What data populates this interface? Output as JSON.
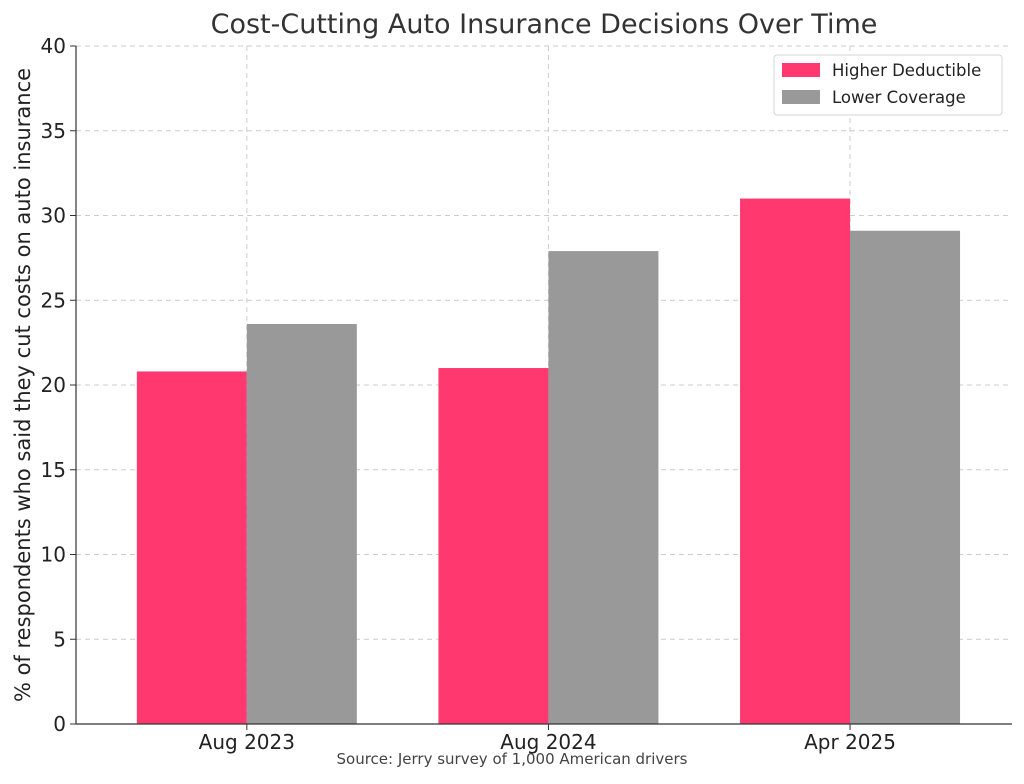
{
  "chart_data": {
    "type": "bar",
    "title": "Cost-Cutting Auto Insurance Decisions Over Time",
    "ylabel": "% of respondents who said they cut costs on auto insurance",
    "xlabel": "",
    "caption": "Source: Jerry survey of 1,000 American drivers",
    "categories": [
      "Aug 2023",
      "Aug 2024",
      "Apr 2025"
    ],
    "series": [
      {
        "name": "Higher Deductible",
        "color": "#ff3970",
        "values": [
          20.8,
          21.0,
          31.0
        ]
      },
      {
        "name": "Lower Coverage",
        "color": "#999999",
        "values": [
          23.6,
          27.9,
          29.1
        ]
      }
    ],
    "ylim": [
      0,
      40
    ],
    "yticks": [
      0,
      5,
      10,
      15,
      20,
      25,
      30,
      35,
      40
    ],
    "grid": true,
    "legend_position": "top-right"
  }
}
